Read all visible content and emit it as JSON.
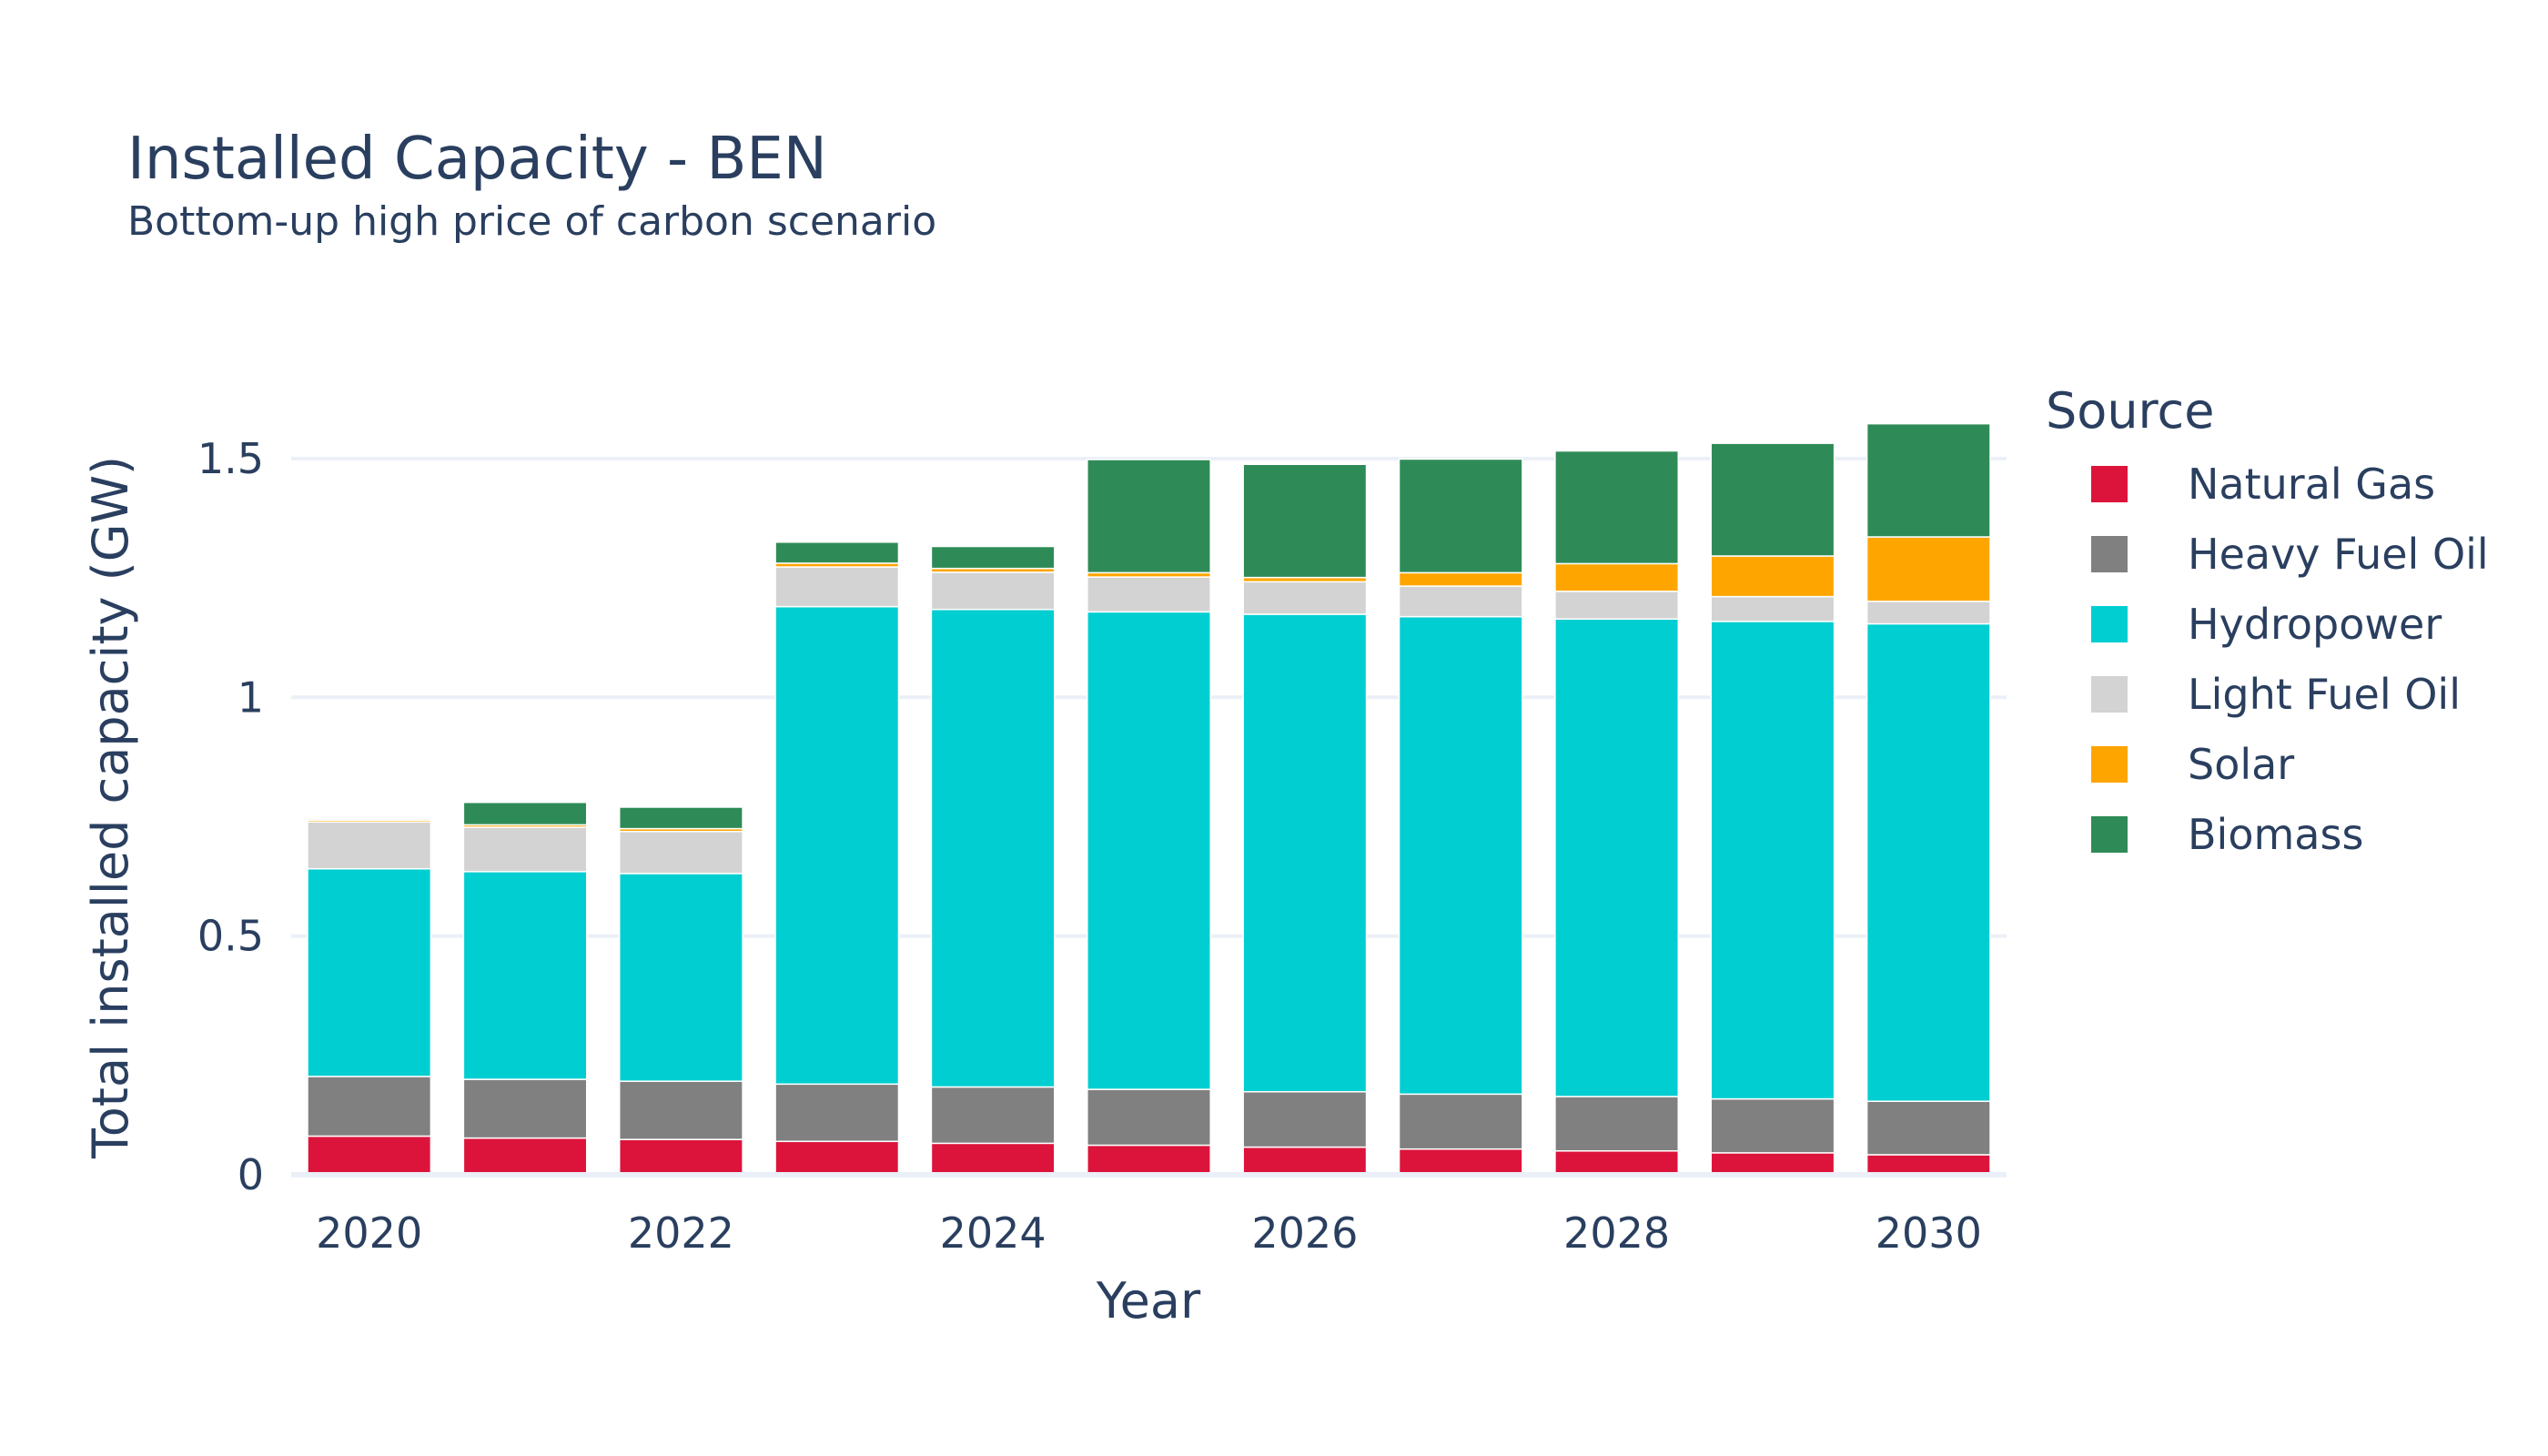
{
  "chart_data": {
    "type": "bar",
    "stacked": true,
    "title": "Installed Capacity - BEN",
    "subtitle": "Bottom-up high price of carbon scenario",
    "xlabel": "Year",
    "ylabel": "Total installed capacity (GW)",
    "categories": [
      2020,
      2021,
      2022,
      2023,
      2024,
      2025,
      2026,
      2027,
      2028,
      2029,
      2030
    ],
    "x_ticks": [
      2020,
      2022,
      2024,
      2026,
      2028,
      2030
    ],
    "y_ticks": [
      0,
      0.5,
      1,
      1.5
    ],
    "y_tick_labels": [
      "0",
      "0.5",
      "1",
      "1.5"
    ],
    "ylim": [
      0,
      1.66
    ],
    "grid": true,
    "legend_title": "Source",
    "legend_position": "right",
    "series": [
      {
        "name": "Natural Gas",
        "color": "#dc143c",
        "values": [
          0.081,
          0.077,
          0.074,
          0.07,
          0.066,
          0.062,
          0.058,
          0.054,
          0.05,
          0.046,
          0.042
        ]
      },
      {
        "name": "Heavy Fuel Oil",
        "color": "#808080",
        "values": [
          0.125,
          0.123,
          0.122,
          0.12,
          0.118,
          0.117,
          0.116,
          0.115,
          0.114,
          0.113,
          0.112
        ]
      },
      {
        "name": "Hydropower",
        "color": "#00ced1",
        "values": [
          0.435,
          0.435,
          0.435,
          1.0,
          1.0,
          1.0,
          1.0,
          1.0,
          1.0,
          1.0,
          1.0
        ]
      },
      {
        "name": "Light Fuel Oil",
        "color": "#d3d3d3",
        "values": [
          0.098,
          0.093,
          0.088,
          0.083,
          0.078,
          0.073,
          0.068,
          0.064,
          0.058,
          0.052,
          0.047
        ]
      },
      {
        "name": "Solar",
        "color": "#ffa500",
        "values": [
          0.004,
          0.005,
          0.006,
          0.008,
          0.008,
          0.009,
          0.009,
          0.028,
          0.058,
          0.085,
          0.135
        ]
      },
      {
        "name": "Biomass",
        "color": "#2e8b57",
        "values": [
          0.003,
          0.047,
          0.045,
          0.044,
          0.046,
          0.237,
          0.237,
          0.238,
          0.236,
          0.236,
          0.237
        ]
      }
    ]
  }
}
